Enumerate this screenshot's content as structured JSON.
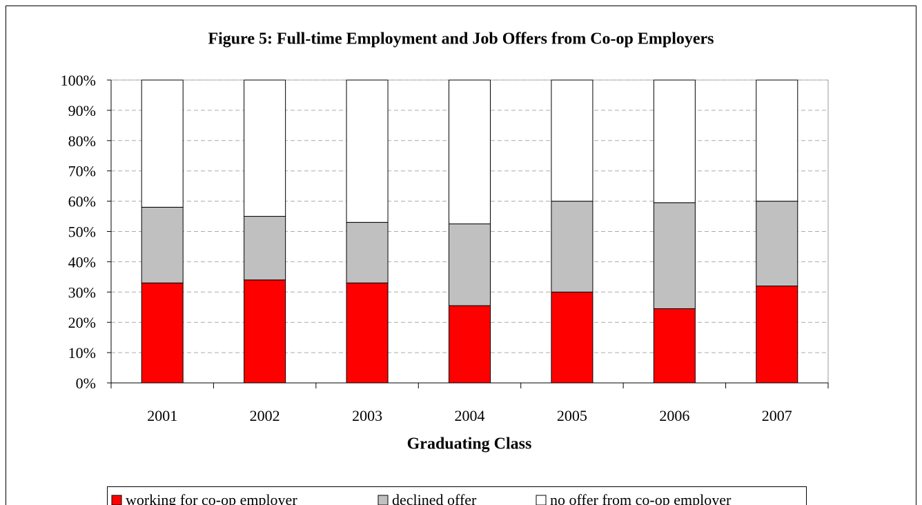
{
  "chart_data": {
    "type": "stacked_bar",
    "title": "Figure 5:  Full-time Employment and Job Offers from Co-op Employers",
    "x_label": "Graduating Class",
    "categories": [
      "2001",
      "2002",
      "2003",
      "2004",
      "2005",
      "2006",
      "2007"
    ],
    "series": [
      {
        "name": "working for co-op employer",
        "color": "#ff0000",
        "values": [
          33,
          34,
          33,
          25.5,
          30,
          24.5,
          32
        ]
      },
      {
        "name": "declined offer",
        "color": "#c0c0c0",
        "values": [
          25,
          21,
          20,
          27,
          30,
          35,
          28
        ]
      },
      {
        "name": "no offer from co-op employer",
        "color": "#ffffff",
        "values": [
          42,
          45,
          47,
          47.5,
          40,
          40.5,
          40
        ]
      }
    ],
    "ylim": [
      0,
      100
    ],
    "yticks": [
      {
        "value": 0,
        "label": "0%"
      },
      {
        "value": 10,
        "label": "10%"
      },
      {
        "value": 20,
        "label": "20%"
      },
      {
        "value": 30,
        "label": "30%"
      },
      {
        "value": 40,
        "label": "40%"
      },
      {
        "value": 50,
        "label": "50%"
      },
      {
        "value": 60,
        "label": "60%"
      },
      {
        "value": 70,
        "label": "70%"
      },
      {
        "value": 80,
        "label": "80%"
      },
      {
        "value": 90,
        "label": "90%"
      },
      {
        "value": 100,
        "label": "100%"
      }
    ],
    "grid": true,
    "legend": "bottom"
  }
}
